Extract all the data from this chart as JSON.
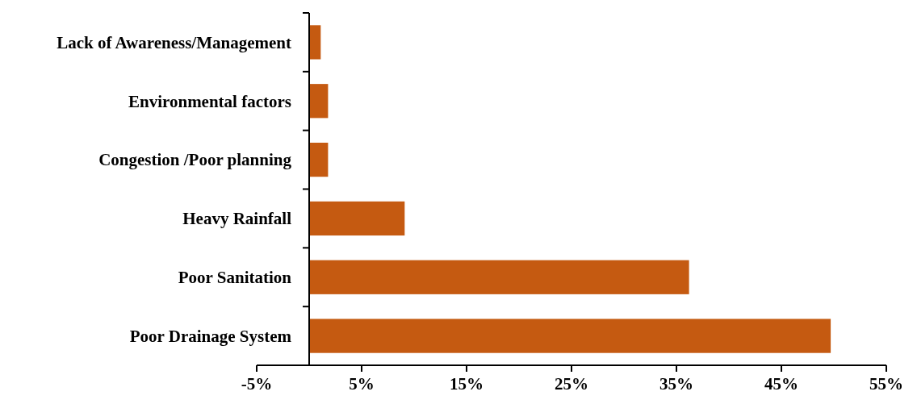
{
  "chart_data": {
    "type": "bar",
    "orientation": "horizontal",
    "categories": [
      "Lack of Awareness/Management",
      "Environmental factors",
      "Congestion /Poor planning",
      "Heavy Rainfall",
      "Poor Sanitation",
      "Poor Drainage System"
    ],
    "values": [
      1.1,
      1.8,
      1.8,
      9.1,
      36.2,
      49.7
    ],
    "color": "#c55a11",
    "xlim": [
      -5,
      55
    ],
    "xticks": [
      {
        "value": -5,
        "label": "-5%"
      },
      {
        "value": 5,
        "label": "5%"
      },
      {
        "value": 15,
        "label": "15%"
      },
      {
        "value": 25,
        "label": "25%"
      },
      {
        "value": 35,
        "label": "35%"
      },
      {
        "value": 45,
        "label": "45%"
      },
      {
        "value": 55,
        "label": "55%"
      }
    ],
    "grid": false
  }
}
